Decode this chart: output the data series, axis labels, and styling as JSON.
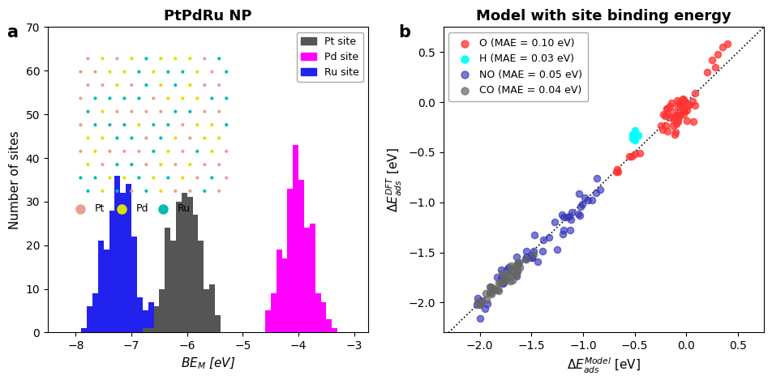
{
  "title_a": "PtPdRu NP",
  "title_b": "Model with site binding energy",
  "label_a": "a",
  "label_b": "b",
  "xlabel_a": "$BE_M$ [eV]",
  "ylabel_a": "Number of sites",
  "xlabel_b": "$\\Delta E_{ads}^{Model}$ [eV]",
  "ylabel_b": "$\\Delta E_{ads}^{DFT}$ [eV]",
  "xlim_a": [
    -8.5,
    -2.75
  ],
  "ylim_a": [
    0,
    70
  ],
  "xlim_b": [
    -2.35,
    0.75
  ],
  "ylim_b": [
    -2.3,
    0.75
  ],
  "hist_colors": {
    "Pt": "#555555",
    "Pd": "#ff00ff",
    "Ru": "#2222ee"
  },
  "scatter_colors": {
    "O": "#ff3333",
    "H": "#00ffff",
    "NO": "#3333bb",
    "CO": "#666666"
  },
  "legend_labels_b": [
    "O (MAE = 0.10 eV)",
    "H (MAE = 0.03 eV)",
    "NO (MAE = 0.05 eV)",
    "CO (MAE = 0.04 eV)"
  ],
  "atom_colors": {
    "Pt": "#e8a090",
    "Pd": "#e0e000",
    "Ru": "#00bbb0"
  },
  "background_color": "#ffffff"
}
